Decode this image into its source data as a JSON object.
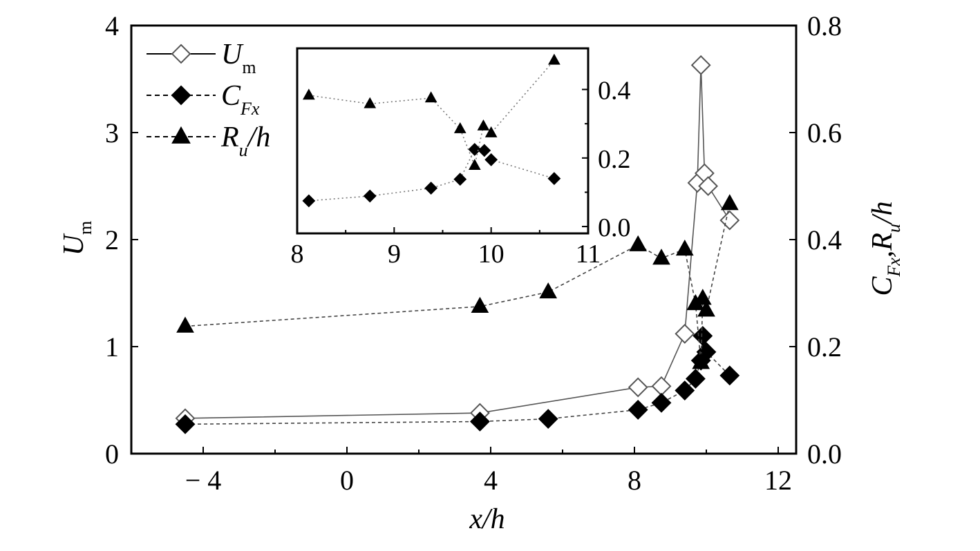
{
  "chart_data": [
    {
      "type": "scatter",
      "x_label": {
        "main": "x/h"
      },
      "y_left_label": {
        "main": "U",
        "sub": "m"
      },
      "y_right_label": {
        "p1": "C",
        "p1sub": "Fx",
        "p2": ",R",
        "p2sub": "u",
        "p3": "/h"
      },
      "xlim": [
        -6,
        12.5
      ],
      "xticks": [
        -4,
        0,
        4,
        8,
        12
      ],
      "xtick_labels": [
        "− 4",
        "0",
        "4",
        "8",
        "12"
      ],
      "ylim_left": [
        0,
        4
      ],
      "yticks_left": [
        0,
        1,
        2,
        3,
        4
      ],
      "ylim_right": [
        0.0,
        0.8
      ],
      "yticks_right": [
        0.0,
        0.2,
        0.4,
        0.6,
        0.8
      ],
      "ytick_labels_right": [
        "0.0",
        "0.2",
        "0.4",
        "0.6",
        "0.8"
      ],
      "legend": [
        {
          "label": "U",
          "sub": "m",
          "marker": "diamond-open",
          "line": "solid"
        },
        {
          "label": "C",
          "sub": "Fx",
          "marker": "diamond-filled",
          "line": "dashed"
        },
        {
          "label": "R",
          "sub": "u",
          "suffix": "/h",
          "marker": "triangle-filled",
          "line": "dashed"
        }
      ],
      "series": [
        {
          "name": "U_m",
          "axis": "left",
          "marker": "diamond-open",
          "line": "solid",
          "x": [
            -4.5,
            3.7,
            8.1,
            8.75,
            9.4,
            9.75,
            9.85,
            9.95,
            10.05,
            10.65
          ],
          "y": [
            0.33,
            0.38,
            0.62,
            0.63,
            1.12,
            2.53,
            3.63,
            2.62,
            2.5,
            2.18
          ]
        },
        {
          "name": "C_Fx",
          "axis": "right",
          "marker": "diamond-filled",
          "line": "dashed",
          "x": [
            -4.5,
            3.7,
            5.6,
            8.1,
            8.75,
            9.4,
            9.7,
            9.85,
            9.9,
            10.0,
            10.65
          ],
          "y": [
            0.055,
            0.06,
            0.065,
            0.082,
            0.095,
            0.118,
            0.14,
            0.174,
            0.22,
            0.19,
            0.146
          ]
        },
        {
          "name": "R_u/h",
          "axis": "right",
          "marker": "triangle-filled",
          "line": "dashed",
          "x": [
            -4.5,
            3.7,
            5.6,
            8.1,
            8.75,
            9.4,
            9.7,
            9.85,
            9.9,
            10.0,
            10.65
          ],
          "y": [
            0.238,
            0.275,
            0.302,
            0.39,
            0.365,
            0.382,
            0.28,
            0.17,
            0.29,
            0.268,
            0.467
          ]
        }
      ],
      "grid": false
    },
    {
      "type": "scatter",
      "inset": true,
      "xlim": [
        8,
        11
      ],
      "xticks": [
        8,
        9,
        10,
        11
      ],
      "xtick_labels": [
        "8",
        "9",
        "10",
        "11"
      ],
      "ylim": [
        -0.02,
        0.52
      ],
      "yticks": [
        0.0,
        0.2,
        0.4
      ],
      "ytick_labels": [
        "0.0",
        "0.2",
        "0.4"
      ],
      "series": [
        {
          "name": "C_Fx",
          "marker": "diamond-filled",
          "line": "dotted",
          "x": [
            8.12,
            8.75,
            9.38,
            9.68,
            9.83,
            9.93,
            10.0,
            10.65
          ],
          "y": [
            0.075,
            0.089,
            0.112,
            0.138,
            0.225,
            0.222,
            0.195,
            0.14
          ]
        },
        {
          "name": "R_u/h",
          "marker": "triangle-filled",
          "line": "dotted",
          "x": [
            8.12,
            8.75,
            9.38,
            9.68,
            9.83,
            9.92,
            10.0,
            10.65
          ],
          "y": [
            0.383,
            0.358,
            0.375,
            0.285,
            0.178,
            0.293,
            0.273,
            0.485
          ]
        }
      ]
    }
  ]
}
